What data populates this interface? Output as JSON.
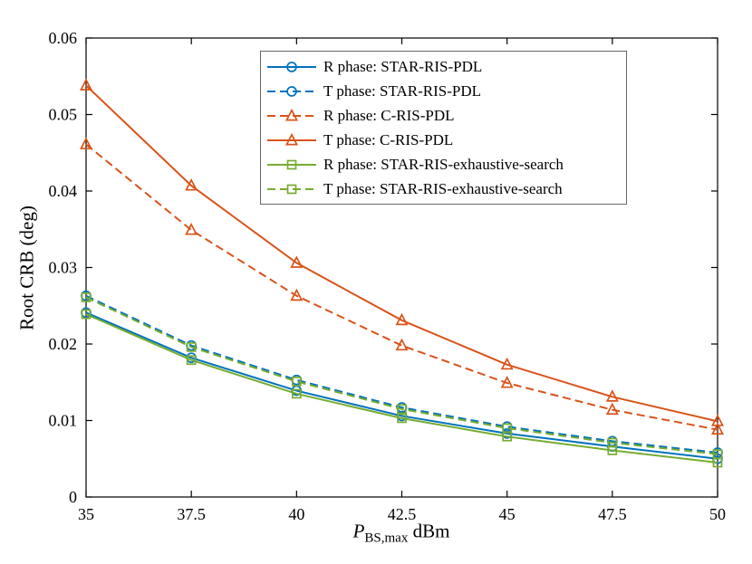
{
  "chart_data": {
    "type": "line",
    "title": "",
    "ylabel": "Root CRB (deg)",
    "xlabel_parts": {
      "italic": "P",
      "sub": "BS,max",
      "rest": " dBm"
    },
    "xlim": [
      35,
      50
    ],
    "ylim": [
      0,
      0.06
    ],
    "grid": false,
    "legend_position": "inside top-right",
    "xticks": {
      "values": [
        35,
        37.5,
        40,
        42.5,
        45,
        47.5,
        50
      ],
      "labels": [
        "35",
        "37.5",
        "40",
        "42.5",
        "45",
        "47.5",
        "50"
      ]
    },
    "yticks": {
      "values": [
        0,
        0.01,
        0.02,
        0.03,
        0.04,
        0.05,
        0.06
      ],
      "labels": [
        "0",
        "0.01",
        "0.02",
        "0.03",
        "0.04",
        "0.05",
        "0.06"
      ]
    },
    "x": [
      35,
      37.5,
      40,
      42.5,
      45,
      47.5,
      50
    ],
    "series": [
      {
        "name": "R phase: STAR-RIS-PDL",
        "color": "#0072BD",
        "style": "solid",
        "marker": "circle",
        "values": [
          0.0241,
          0.0182,
          0.0139,
          0.0106,
          0.0083,
          0.0066,
          0.005
        ]
      },
      {
        "name": "T phase: STAR-RIS-PDL",
        "color": "#0072BD",
        "style": "dashed",
        "marker": "circle",
        "values": [
          0.0263,
          0.0198,
          0.0153,
          0.0117,
          0.0092,
          0.0073,
          0.0058
        ]
      },
      {
        "name": "R phase: C-RIS-PDL",
        "color": "#D95319",
        "style": "dashed",
        "marker": "triangle",
        "values": [
          0.0461,
          0.0349,
          0.0263,
          0.0198,
          0.0149,
          0.0114,
          0.0088
        ]
      },
      {
        "name": "T phase: C-RIS-PDL",
        "color": "#D95319",
        "style": "solid",
        "marker": "triangle",
        "values": [
          0.0538,
          0.0407,
          0.0306,
          0.0231,
          0.0173,
          0.0131,
          0.0099
        ]
      },
      {
        "name": "R phase: STAR-RIS-exhaustive-search",
        "color": "#77AC30",
        "style": "solid",
        "marker": "square",
        "values": [
          0.0239,
          0.0179,
          0.0135,
          0.0103,
          0.0079,
          0.0061,
          0.0045
        ]
      },
      {
        "name": "T phase: STAR-RIS-exhaustive-search",
        "color": "#77AC30",
        "style": "dashed",
        "marker": "square",
        "values": [
          0.0261,
          0.0196,
          0.0151,
          0.0115,
          0.009,
          0.0071,
          0.0056
        ]
      }
    ]
  }
}
